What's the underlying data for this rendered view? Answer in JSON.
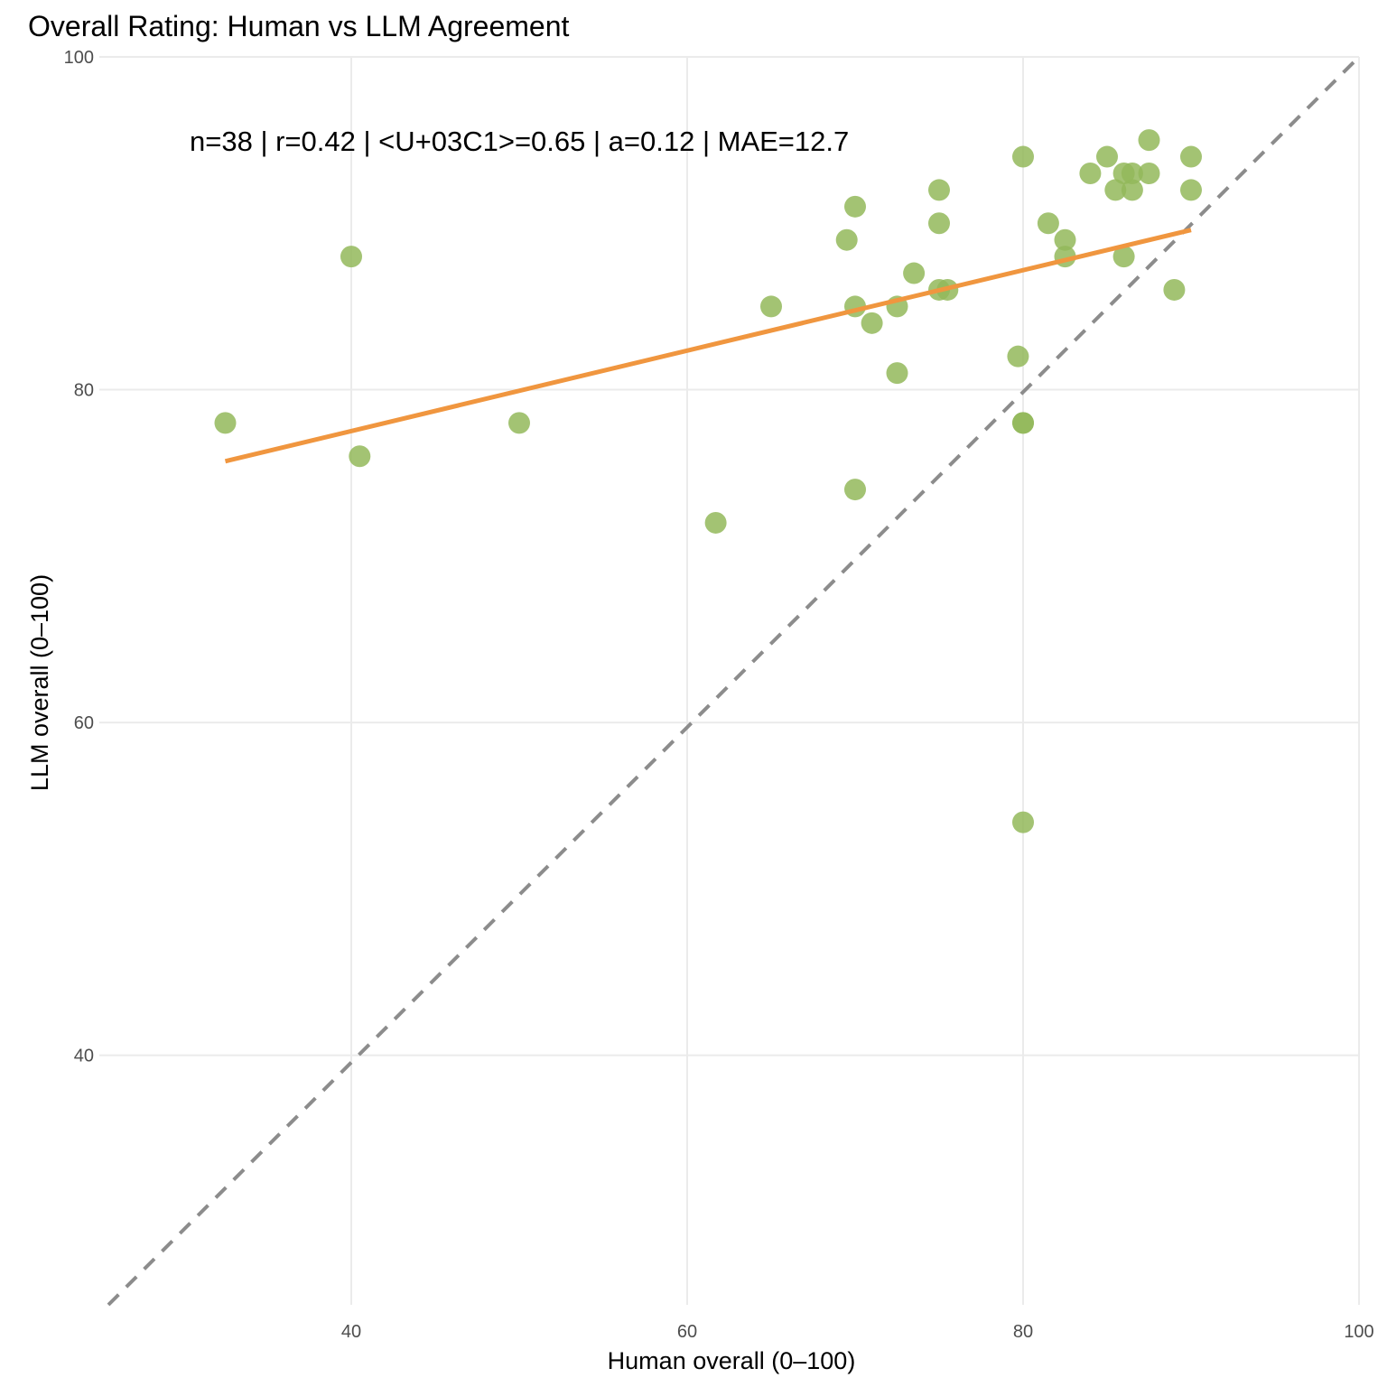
{
  "chart_data": {
    "type": "scatter",
    "title": "Overall Rating: Human vs LLM Agreement",
    "xlabel": "Human overall (0–100)",
    "ylabel": "LLM overall (0–100)",
    "xlim": [
      25,
      100
    ],
    "ylim": [
      25,
      100
    ],
    "xticks": [
      "40",
      "60",
      "80",
      "100"
    ],
    "yticks": [
      "40",
      "60",
      "80",
      "100"
    ],
    "grid": true,
    "annotation": "n=38 | r=0.42 | <U+03C1>=0.65 | a=0.12 | MAE=12.7",
    "colors": {
      "points": "#93b95a",
      "fit_line": "#f0963f",
      "identity_line": "#8c8c8c",
      "grid": "#ebebeb"
    },
    "identity_line": {
      "from": [
        25,
        25
      ],
      "to": [
        100,
        100
      ],
      "style": "dashed"
    },
    "fit_line": {
      "from": [
        32.5,
        75.7
      ],
      "to": [
        90,
        89.6
      ]
    },
    "points": [
      [
        32.5,
        78
      ],
      [
        40,
        88
      ],
      [
        40.5,
        76
      ],
      [
        50,
        78
      ],
      [
        61.7,
        72
      ],
      [
        65,
        85
      ],
      [
        69.5,
        89
      ],
      [
        70,
        91
      ],
      [
        70,
        85
      ],
      [
        70,
        74
      ],
      [
        71,
        84
      ],
      [
        72.5,
        85
      ],
      [
        72.5,
        81
      ],
      [
        73.5,
        87
      ],
      [
        75,
        92
      ],
      [
        75,
        90
      ],
      [
        75,
        86
      ],
      [
        75.5,
        86
      ],
      [
        79.7,
        82
      ],
      [
        80,
        94
      ],
      [
        80,
        78
      ],
      [
        80,
        78
      ],
      [
        80,
        54
      ],
      [
        81.5,
        90
      ],
      [
        82.5,
        89
      ],
      [
        82.5,
        88
      ],
      [
        84,
        93
      ],
      [
        85,
        94
      ],
      [
        85.5,
        92
      ],
      [
        86,
        93
      ],
      [
        86,
        88
      ],
      [
        86.5,
        93
      ],
      [
        86.5,
        92
      ],
      [
        87.5,
        95
      ],
      [
        87.5,
        93
      ],
      [
        89,
        86
      ],
      [
        90,
        94
      ],
      [
        90,
        92
      ]
    ]
  }
}
